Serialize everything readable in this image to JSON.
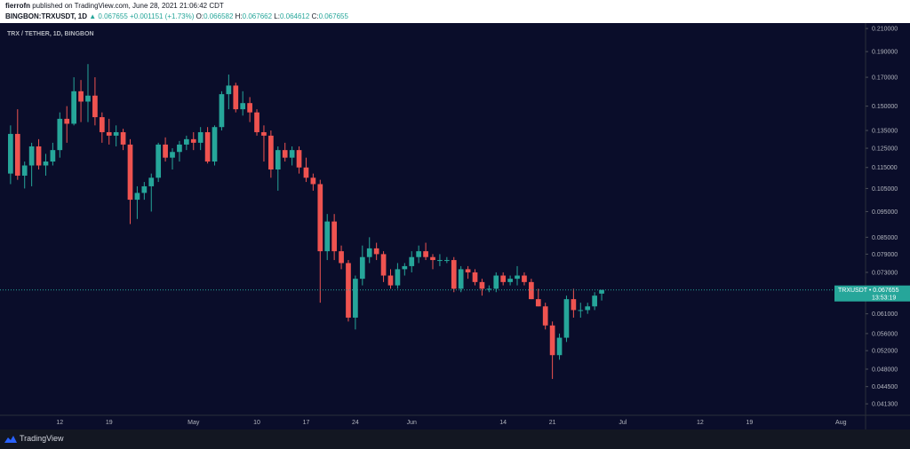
{
  "header": {
    "author": "fierrofn",
    "published_text": "published on TradingView.com, June 28, 2021 21:06:42 CDT",
    "symbol_full": "BINGBON:TRXUSDT, 1D",
    "price": "0.067655",
    "change": "+0.001151 (+1.73%)",
    "o_label": "O:",
    "o_value": "0.066582",
    "h_label": "H:",
    "h_value": "0.067662",
    "l_label": "L:",
    "l_value": "0.064612",
    "c_label": "C:",
    "c_value": "0.067655"
  },
  "colors": {
    "up": "#26a69a",
    "down": "#ef5350",
    "background": "#0a0d2a",
    "axis_text": "#b2b5be",
    "current_price_line": "#26a69a"
  },
  "price_label": {
    "symbol": "TRXUSDT",
    "price": "0.067655",
    "countdown": "13:53:19"
  },
  "footer": {
    "brand": "TradingView",
    "logo_icon": "tradingview-logo-icon"
  },
  "chart_data": {
    "type": "candlestick",
    "title": "TRX / TETHER, 1D, BINGBON",
    "y_scale": "log",
    "ylim": [
      0.0393,
      0.215
    ],
    "y_ticks": [
      0.21,
      0.19,
      0.17,
      0.15,
      0.135,
      0.125,
      0.115,
      0.105,
      0.095,
      0.085,
      0.079,
      0.073,
      0.061,
      0.056,
      0.052,
      0.048,
      0.0445,
      0.0413
    ],
    "x_ticks": [
      {
        "label": "12",
        "date": "2021-04-12"
      },
      {
        "label": "19",
        "date": "2021-04-19"
      },
      {
        "label": "May",
        "date": "2021-05-01"
      },
      {
        "label": "10",
        "date": "2021-05-10"
      },
      {
        "label": "17",
        "date": "2021-05-17"
      },
      {
        "label": "24",
        "date": "2021-05-24"
      },
      {
        "label": "Jun",
        "date": "2021-06-01"
      },
      {
        "label": "14",
        "date": "2021-06-14"
      },
      {
        "label": "21",
        "date": "2021-06-21"
      },
      {
        "label": "Jul",
        "date": "2021-07-01"
      },
      {
        "label": "12",
        "date": "2021-07-12"
      },
      {
        "label": "19",
        "date": "2021-07-19"
      },
      {
        "label": "Aug",
        "date": "2021-08-01"
      }
    ],
    "x_range": [
      "2021-04-04",
      "2021-08-05"
    ],
    "current_price": 0.067655,
    "candles": [
      {
        "date": "2021-04-05",
        "o": 0.112,
        "h": 0.138,
        "l": 0.107,
        "c": 0.133
      },
      {
        "date": "2021-04-06",
        "o": 0.133,
        "h": 0.148,
        "l": 0.109,
        "c": 0.111
      },
      {
        "date": "2021-04-07",
        "o": 0.111,
        "h": 0.118,
        "l": 0.105,
        "c": 0.116
      },
      {
        "date": "2021-04-08",
        "o": 0.116,
        "h": 0.128,
        "l": 0.106,
        "c": 0.126
      },
      {
        "date": "2021-04-09",
        "o": 0.126,
        "h": 0.13,
        "l": 0.114,
        "c": 0.116
      },
      {
        "date": "2021-04-10",
        "o": 0.116,
        "h": 0.122,
        "l": 0.111,
        "c": 0.118
      },
      {
        "date": "2021-04-11",
        "o": 0.118,
        "h": 0.128,
        "l": 0.116,
        "c": 0.124
      },
      {
        "date": "2021-04-12",
        "o": 0.124,
        "h": 0.146,
        "l": 0.12,
        "c": 0.142
      },
      {
        "date": "2021-04-13",
        "o": 0.142,
        "h": 0.15,
        "l": 0.128,
        "c": 0.139
      },
      {
        "date": "2021-04-14",
        "o": 0.139,
        "h": 0.17,
        "l": 0.138,
        "c": 0.16
      },
      {
        "date": "2021-04-15",
        "o": 0.16,
        "h": 0.168,
        "l": 0.14,
        "c": 0.153
      },
      {
        "date": "2021-04-16",
        "o": 0.153,
        "h": 0.18,
        "l": 0.14,
        "c": 0.157
      },
      {
        "date": "2021-04-17",
        "o": 0.157,
        "h": 0.17,
        "l": 0.138,
        "c": 0.143
      },
      {
        "date": "2021-04-18",
        "o": 0.143,
        "h": 0.146,
        "l": 0.128,
        "c": 0.134
      },
      {
        "date": "2021-04-19",
        "o": 0.134,
        "h": 0.142,
        "l": 0.127,
        "c": 0.132
      },
      {
        "date": "2021-04-20",
        "o": 0.132,
        "h": 0.138,
        "l": 0.126,
        "c": 0.134
      },
      {
        "date": "2021-04-21",
        "o": 0.134,
        "h": 0.136,
        "l": 0.124,
        "c": 0.127
      },
      {
        "date": "2021-04-22",
        "o": 0.127,
        "h": 0.13,
        "l": 0.09,
        "c": 0.1
      },
      {
        "date": "2021-04-23",
        "o": 0.1,
        "h": 0.106,
        "l": 0.092,
        "c": 0.103
      },
      {
        "date": "2021-04-24",
        "o": 0.103,
        "h": 0.108,
        "l": 0.1,
        "c": 0.106
      },
      {
        "date": "2021-04-25",
        "o": 0.106,
        "h": 0.112,
        "l": 0.095,
        "c": 0.11
      },
      {
        "date": "2021-04-26",
        "o": 0.11,
        "h": 0.128,
        "l": 0.108,
        "c": 0.127
      },
      {
        "date": "2021-04-27",
        "o": 0.127,
        "h": 0.131,
        "l": 0.118,
        "c": 0.12
      },
      {
        "date": "2021-04-28",
        "o": 0.12,
        "h": 0.125,
        "l": 0.114,
        "c": 0.123
      },
      {
        "date": "2021-04-29",
        "o": 0.123,
        "h": 0.129,
        "l": 0.118,
        "c": 0.127
      },
      {
        "date": "2021-04-30",
        "o": 0.127,
        "h": 0.132,
        "l": 0.124,
        "c": 0.13
      },
      {
        "date": "2021-05-01",
        "o": 0.13,
        "h": 0.134,
        "l": 0.124,
        "c": 0.128
      },
      {
        "date": "2021-05-02",
        "o": 0.128,
        "h": 0.137,
        "l": 0.124,
        "c": 0.134
      },
      {
        "date": "2021-05-03",
        "o": 0.134,
        "h": 0.137,
        "l": 0.117,
        "c": 0.118
      },
      {
        "date": "2021-05-04",
        "o": 0.118,
        "h": 0.138,
        "l": 0.116,
        "c": 0.137
      },
      {
        "date": "2021-05-05",
        "o": 0.137,
        "h": 0.16,
        "l": 0.135,
        "c": 0.158
      },
      {
        "date": "2021-05-06",
        "o": 0.158,
        "h": 0.172,
        "l": 0.148,
        "c": 0.164
      },
      {
        "date": "2021-05-07",
        "o": 0.164,
        "h": 0.166,
        "l": 0.146,
        "c": 0.148
      },
      {
        "date": "2021-05-08",
        "o": 0.148,
        "h": 0.16,
        "l": 0.144,
        "c": 0.152
      },
      {
        "date": "2021-05-09",
        "o": 0.152,
        "h": 0.156,
        "l": 0.14,
        "c": 0.146
      },
      {
        "date": "2021-05-10",
        "o": 0.146,
        "h": 0.148,
        "l": 0.132,
        "c": 0.134
      },
      {
        "date": "2021-05-11",
        "o": 0.134,
        "h": 0.138,
        "l": 0.118,
        "c": 0.132
      },
      {
        "date": "2021-05-12",
        "o": 0.132,
        "h": 0.135,
        "l": 0.11,
        "c": 0.114
      },
      {
        "date": "2021-05-13",
        "o": 0.114,
        "h": 0.126,
        "l": 0.104,
        "c": 0.124
      },
      {
        "date": "2021-05-14",
        "o": 0.124,
        "h": 0.128,
        "l": 0.118,
        "c": 0.12
      },
      {
        "date": "2021-05-15",
        "o": 0.12,
        "h": 0.126,
        "l": 0.116,
        "c": 0.124
      },
      {
        "date": "2021-05-16",
        "o": 0.124,
        "h": 0.126,
        "l": 0.112,
        "c": 0.115
      },
      {
        "date": "2021-05-17",
        "o": 0.115,
        "h": 0.12,
        "l": 0.108,
        "c": 0.11
      },
      {
        "date": "2021-05-18",
        "o": 0.11,
        "h": 0.112,
        "l": 0.104,
        "c": 0.107
      },
      {
        "date": "2021-05-19",
        "o": 0.107,
        "h": 0.109,
        "l": 0.064,
        "c": 0.08
      },
      {
        "date": "2021-05-20",
        "o": 0.08,
        "h": 0.094,
        "l": 0.077,
        "c": 0.091
      },
      {
        "date": "2021-05-21",
        "o": 0.091,
        "h": 0.094,
        "l": 0.077,
        "c": 0.08
      },
      {
        "date": "2021-05-22",
        "o": 0.08,
        "h": 0.082,
        "l": 0.074,
        "c": 0.076
      },
      {
        "date": "2021-05-23",
        "o": 0.076,
        "h": 0.077,
        "l": 0.059,
        "c": 0.06
      },
      {
        "date": "2021-05-24",
        "o": 0.06,
        "h": 0.072,
        "l": 0.057,
        "c": 0.071
      },
      {
        "date": "2021-05-25",
        "o": 0.071,
        "h": 0.082,
        "l": 0.069,
        "c": 0.078
      },
      {
        "date": "2021-05-26",
        "o": 0.078,
        "h": 0.085,
        "l": 0.076,
        "c": 0.081
      },
      {
        "date": "2021-05-27",
        "o": 0.081,
        "h": 0.083,
        "l": 0.077,
        "c": 0.079
      },
      {
        "date": "2021-05-28",
        "o": 0.079,
        "h": 0.08,
        "l": 0.07,
        "c": 0.072
      },
      {
        "date": "2021-05-29",
        "o": 0.072,
        "h": 0.074,
        "l": 0.068,
        "c": 0.069
      },
      {
        "date": "2021-05-30",
        "o": 0.069,
        "h": 0.076,
        "l": 0.068,
        "c": 0.074
      },
      {
        "date": "2021-05-31",
        "o": 0.074,
        "h": 0.076,
        "l": 0.072,
        "c": 0.075
      },
      {
        "date": "2021-06-01",
        "o": 0.075,
        "h": 0.08,
        "l": 0.073,
        "c": 0.078
      },
      {
        "date": "2021-06-02",
        "o": 0.078,
        "h": 0.082,
        "l": 0.076,
        "c": 0.08
      },
      {
        "date": "2021-06-03",
        "o": 0.08,
        "h": 0.083,
        "l": 0.077,
        "c": 0.078
      },
      {
        "date": "2021-06-04",
        "o": 0.078,
        "h": 0.079,
        "l": 0.074,
        "c": 0.077
      },
      {
        "date": "2021-06-05",
        "o": 0.077,
        "h": 0.079,
        "l": 0.075,
        "c": 0.077
      },
      {
        "date": "2021-06-06",
        "o": 0.077,
        "h": 0.078,
        "l": 0.076,
        "c": 0.077
      },
      {
        "date": "2021-06-07",
        "o": 0.077,
        "h": 0.078,
        "l": 0.067,
        "c": 0.068
      },
      {
        "date": "2021-06-08",
        "o": 0.068,
        "h": 0.075,
        "l": 0.067,
        "c": 0.074
      },
      {
        "date": "2021-06-09",
        "o": 0.074,
        "h": 0.075,
        "l": 0.071,
        "c": 0.073
      },
      {
        "date": "2021-06-10",
        "o": 0.073,
        "h": 0.074,
        "l": 0.069,
        "c": 0.07
      },
      {
        "date": "2021-06-11",
        "o": 0.07,
        "h": 0.071,
        "l": 0.066,
        "c": 0.068
      },
      {
        "date": "2021-06-12",
        "o": 0.068,
        "h": 0.069,
        "l": 0.067,
        "c": 0.068
      },
      {
        "date": "2021-06-13",
        "o": 0.068,
        "h": 0.073,
        "l": 0.067,
        "c": 0.072
      },
      {
        "date": "2021-06-14",
        "o": 0.072,
        "h": 0.073,
        "l": 0.069,
        "c": 0.07
      },
      {
        "date": "2021-06-15",
        "o": 0.07,
        "h": 0.072,
        "l": 0.069,
        "c": 0.071
      },
      {
        "date": "2021-06-16",
        "o": 0.071,
        "h": 0.075,
        "l": 0.069,
        "c": 0.072
      },
      {
        "date": "2021-06-17",
        "o": 0.072,
        "h": 0.073,
        "l": 0.069,
        "c": 0.07
      },
      {
        "date": "2021-06-18",
        "o": 0.07,
        "h": 0.071,
        "l": 0.065,
        "c": 0.065
      },
      {
        "date": "2021-06-19",
        "o": 0.065,
        "h": 0.068,
        "l": 0.063,
        "c": 0.063
      },
      {
        "date": "2021-06-20",
        "o": 0.063,
        "h": 0.064,
        "l": 0.057,
        "c": 0.058
      },
      {
        "date": "2021-06-21",
        "o": 0.058,
        "h": 0.059,
        "l": 0.046,
        "c": 0.051
      },
      {
        "date": "2021-06-22",
        "o": 0.051,
        "h": 0.056,
        "l": 0.05,
        "c": 0.055
      },
      {
        "date": "2021-06-23",
        "o": 0.055,
        "h": 0.066,
        "l": 0.054,
        "c": 0.065
      },
      {
        "date": "2021-06-24",
        "o": 0.065,
        "h": 0.068,
        "l": 0.06,
        "c": 0.062
      },
      {
        "date": "2021-06-25",
        "o": 0.062,
        "h": 0.064,
        "l": 0.06,
        "c": 0.062
      },
      {
        "date": "2021-06-26",
        "o": 0.062,
        "h": 0.064,
        "l": 0.061,
        "c": 0.063
      },
      {
        "date": "2021-06-27",
        "o": 0.063,
        "h": 0.067,
        "l": 0.062,
        "c": 0.066
      },
      {
        "date": "2021-06-28",
        "o": 0.066582,
        "h": 0.067662,
        "l": 0.064612,
        "c": 0.067655
      }
    ]
  }
}
